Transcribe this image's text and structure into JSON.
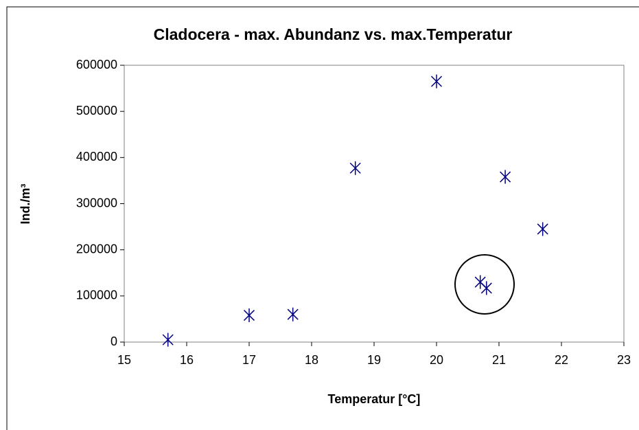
{
  "chart_data": {
    "type": "scatter",
    "title": "Cladocera - max. Abundanz vs. max.Temperatur",
    "x_label": "Temperatur [°C]",
    "y_label": "Ind./m³",
    "series": [
      {
        "name": "Cladocera",
        "color": "#000080",
        "x": [
          15.7,
          17.0,
          17.7,
          18.7,
          20.0,
          20.7,
          20.8,
          21.1,
          21.7
        ],
        "values": [
          5000,
          58000,
          60000,
          377000,
          565000,
          130000,
          117000,
          358000,
          245000
        ]
      }
    ],
    "xlim": [
      15,
      23
    ],
    "xticks": [
      15,
      16,
      17,
      18,
      19,
      20,
      21,
      22,
      23
    ],
    "ylim": [
      0,
      600000
    ],
    "yticks": [
      0,
      100000,
      200000,
      300000,
      400000,
      500000,
      600000
    ],
    "grid": false
  }
}
